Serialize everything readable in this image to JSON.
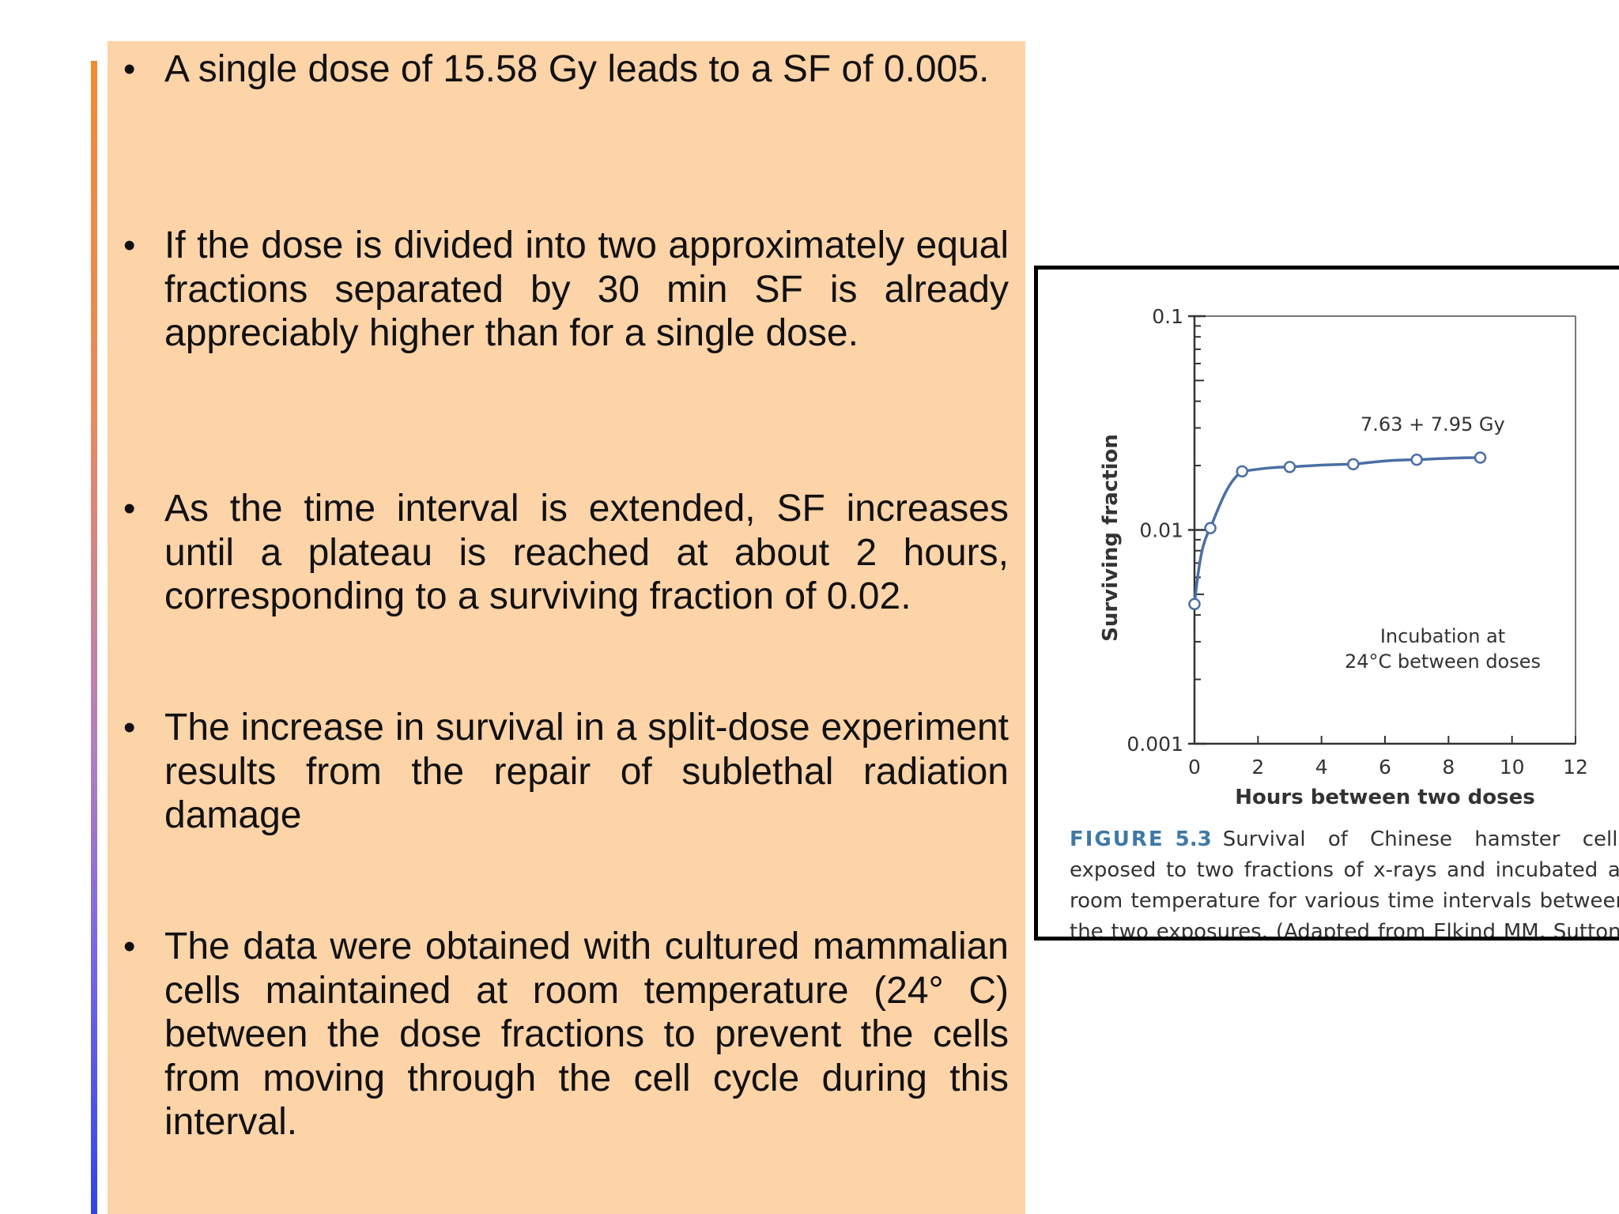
{
  "bullets": [
    "A single dose of 15.58 Gy leads to a SF of 0.005.",
    "If the dose is divided into two approximately equal fractions separated by 30 min SF is already appreciably higher than for a single dose.",
    "As the time interval is extended, SF increases until a plateau is reached at about 2 hours, corresponding to a surviving fraction of 0.02.",
    "The increase in survival in a split-dose experiment results from the repair of sublethal radiation damage",
    "The data were obtained with cultured mammalian cells maintained at room temperature (24° C) between the dose fractions to prevent the cells from moving through the cell cycle during this interval."
  ],
  "bullet_symbol": "•",
  "colors": {
    "panel_background": "#fdd3a8",
    "accent_bar_top": "#f28a2e",
    "accent_bar_bottom": "#2f45e6",
    "series_line": "#4a6fa5",
    "caption_label": "#3f79a6"
  },
  "figure": {
    "caption_label": "FIGURE",
    "caption_number": "5.3",
    "caption_text": "Survival of Chinese hamster cells exposed to two fractions of x-rays and incubated at room temperature for various time intervals between the two exposures. (Adapted from Elkind MM, Sutton-"
  },
  "chart_data": {
    "type": "line",
    "title": "",
    "xlabel": "Hours between two doses",
    "ylabel": "Surviving fraction",
    "xlim": [
      0,
      12
    ],
    "ylim": [
      0.001,
      0.1
    ],
    "yscale": "log",
    "x_ticks": [
      "0",
      "2",
      "4",
      "6",
      "8",
      "10",
      "12"
    ],
    "y_ticks": [
      "0.001",
      "0.01",
      "0.1"
    ],
    "grid": false,
    "series": [
      {
        "name": "7.63 + 7.95 Gy",
        "x": [
          0,
          0.5,
          1.5,
          3,
          5,
          7,
          9
        ],
        "y": [
          0.0045,
          0.0102,
          0.0188,
          0.0197,
          0.0203,
          0.0213,
          0.0218
        ]
      }
    ],
    "annotations": [
      "7.63 + 7.95 Gy",
      "Incubation at",
      "24°C between doses"
    ]
  }
}
